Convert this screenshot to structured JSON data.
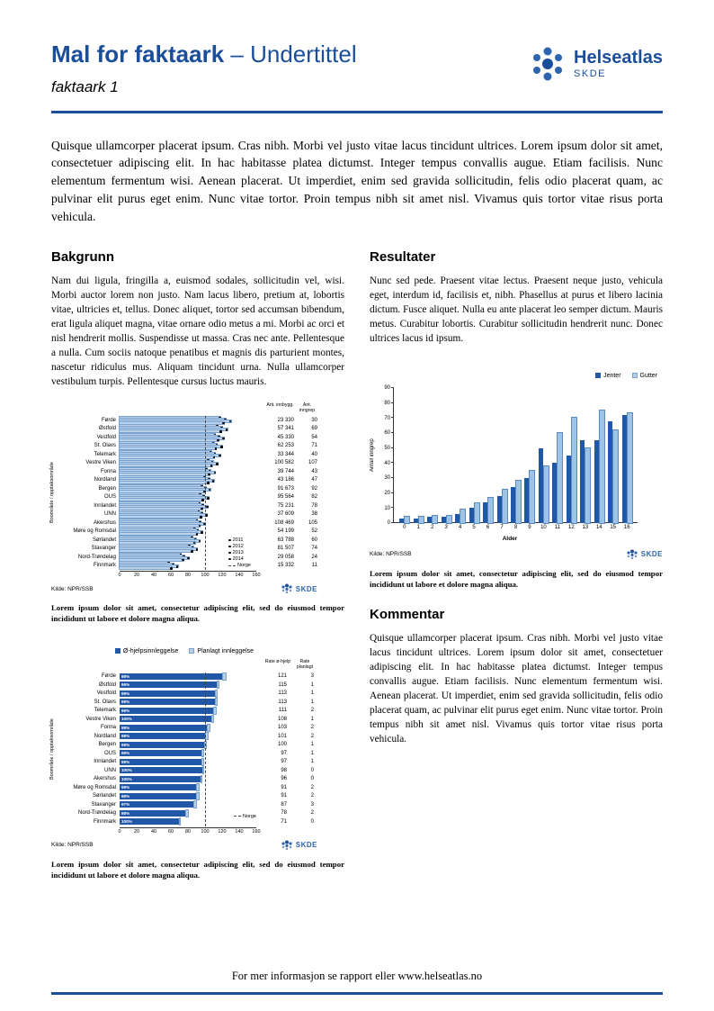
{
  "page": {
    "accent_color": "#1a4e9b",
    "footer_text": "For mer informasjon se rapport eller www.helseatlas.no"
  },
  "header": {
    "title": "Mal for faktaark",
    "separator": " – ",
    "subtitle": "Undertittel",
    "doc_label": "faktaark 1",
    "logo_text": "Helseatlas",
    "logo_sub": "SKDE"
  },
  "intro": "Quisque ullamcorper placerat ipsum. Cras nibh. Morbi vel justo vitae lacus tincidunt ultrices. Lorem ipsum dolor sit amet, consectetuer adipiscing elit. In hac habitasse platea dictumst. Integer tempus convallis augue. Etiam facilisis. Nunc elementum fermentum wisi. Aenean placerat. Ut imperdiet, enim sed gravida sollicitudin, felis odio placerat quam, ac pulvinar elit purus eget enim. Nunc vitae tortor. Proin tempus nibh sit amet nisl. Vivamus quis tortor vitae risus porta vehicula.",
  "sections": {
    "bakgrunn": {
      "title": "Bakgrunn",
      "text": "Nam dui ligula, fringilla a, euismod sodales, sollicitudin vel, wisi. Morbi auctor lorem non justo. Nam lacus libero, pretium at, lobortis vitae, ultricies et, tellus. Donec aliquet, tortor sed accumsan bibendum, erat ligula aliquet magna, vitae ornare odio metus a mi. Morbi ac orci et nisl hendrerit mollis. Suspendisse ut massa. Cras nec ante. Pellentesque a nulla. Cum sociis natoque penatibus et magnis dis parturient montes, nascetur ridiculus mus. Aliquam tincidunt urna. Nulla ullamcorper vestibulum turpis. Pellentesque cursus luctus mauris."
    },
    "resultater": {
      "title": "Resultater",
      "text": "Nunc sed pede. Praesent vitae lectus. Praesent neque justo, vehicula eget, interdum id, facilisis et, nibh. Phasellus at purus et libero lacinia dictum. Fusce aliquet. Nulla eu ante placerat leo semper dictum. Mauris metus. Curabitur lobortis. Curabitur sollicitudin hendrerit nunc. Donec ultrices lacus id ipsum."
    },
    "kommentar": {
      "title": "Kommentar",
      "text": "Quisque ullamcorper placerat ipsum. Cras nibh. Morbi vel justo vitae lacus tincidunt ultrices. Lorem ipsum dolor sit amet, consectetuer adipiscing elit. In hac habitasse platea dictumst. Integer tempus convallis augue. Etiam facilisis. Nunc elementum fermentum wisi. Aenean placerat. Ut imperdiet, enim sed gravida sollicitudin, felis odio placerat quam, ac pulvinar elit purus eget enim. Nunc vitae tortor. Proin tempus nibh sit amet nisl. Vivamus quis tortor vitae risus porta vehicula."
    }
  },
  "captions": {
    "chart1": "Lorem ipsum dolor sit amet, consectetur adipiscing elit, sed do eiusmod tempor incididunt ut labore et dolore magna aliqua.",
    "chart2": "Lorem ipsum dolor sit amet, consectetur adipiscing elit, sed do eiusmod tempor incididunt ut labore et dolore magna aliqua.",
    "chart3": "Lorem ipsum dolor sit amet, consectetur adipiscing elit, sed do eiusmod tempor incididunt ut labore et dolore magna aliqua."
  },
  "chart_data": [
    {
      "type": "bar",
      "orientation": "horizontal",
      "ylabel": "Boområde / opptaksområde",
      "categories": [
        "Førde",
        "Østfold",
        "Vestfold",
        "St. Olavs",
        "Telemark",
        "Vestre Viken",
        "Fonna",
        "Nordland",
        "Bergen",
        "OUS",
        "Innlandet",
        "UNN",
        "Akershus",
        "Møre og Romsdal",
        "Sørlandet",
        "Stavanger",
        "Nord-Trøndelag",
        "Finnmark"
      ],
      "series_names": [
        "2011",
        "2012",
        "2013",
        "2014"
      ],
      "values": [
        [
          118,
          124,
          130,
          122
        ],
        [
          115,
          120,
          126,
          119
        ],
        [
          112,
          117,
          122,
          116
        ],
        [
          110,
          114,
          120,
          113
        ],
        [
          107,
          112,
          118,
          111
        ],
        [
          104,
          109,
          115,
          108
        ],
        [
          102,
          106,
          112,
          105
        ],
        [
          100,
          105,
          110,
          104
        ],
        [
          97,
          101,
          106,
          100
        ],
        [
          95,
          99,
          104,
          98
        ],
        [
          94,
          98,
          103,
          97
        ],
        [
          93,
          97,
          102,
          96
        ],
        [
          91,
          95,
          100,
          94
        ],
        [
          88,
          92,
          97,
          91
        ],
        [
          85,
          89,
          94,
          88
        ],
        [
          82,
          86,
          91,
          85
        ],
        [
          72,
          76,
          81,
          75
        ],
        [
          58,
          63,
          68,
          61
        ]
      ],
      "norge_label": "Norge",
      "norge_value": 100,
      "xlim": [
        0,
        160
      ],
      "xticks": [
        0,
        20,
        40,
        60,
        80,
        100,
        120,
        140,
        160
      ],
      "table": {
        "headers": [
          "Ant. innbygg.",
          "Ant. inngrep"
        ],
        "innbygg": [
          "23 330",
          "57 341",
          "45 330",
          "62 253",
          "33 344",
          "100 582",
          "39 744",
          "43 186",
          "91 673",
          "95 564",
          "75 231",
          "37 609",
          "108 469",
          "54 199",
          "63 788",
          "81 507",
          "29 058",
          "15 332"
        ],
        "inngrep": [
          "30",
          "69",
          "54",
          "71",
          "40",
          "107",
          "43",
          "47",
          "92",
          "82",
          "78",
          "38",
          "105",
          "52",
          "60",
          "74",
          "24",
          "11"
        ]
      },
      "source": "Kilde: NPR/SSB",
      "colors": {
        "bar": "#bcd2ec",
        "marker": "#000000"
      }
    },
    {
      "type": "bar",
      "orientation": "horizontal",
      "stacked": true,
      "ylabel": "Boområde / opptaksområde",
      "categories": [
        "Førde",
        "Østfold",
        "Vestfold",
        "St. Olavs",
        "Telemark",
        "Vestre Viken",
        "Fonna",
        "Nordland",
        "Bergen",
        "OUS",
        "Innlandet",
        "UNN",
        "Akershus",
        "Møre og Romsdal",
        "Sørlandet",
        "Stavanger",
        "Nord-Trøndelag",
        "Finnmark"
      ],
      "pct_labels": [
        "98%",
        "99%",
        "99%",
        "99%",
        "99%",
        "100%",
        "98%",
        "98%",
        "99%",
        "99%",
        "99%",
        "100%",
        "100%",
        "98%",
        "98%",
        "97%",
        "98%",
        "100%"
      ],
      "series": [
        {
          "name": "Ø-hjelpsinnleggelse",
          "values": [
            121,
            115,
            113,
            113,
            111,
            108,
            103,
            101,
            100,
            97,
            97,
            98,
            96,
            91,
            91,
            87,
            78,
            71
          ]
        },
        {
          "name": "Planlagt innleggelse",
          "values": [
            3,
            1,
            1,
            1,
            2,
            1,
            2,
            2,
            1,
            1,
            1,
            0,
            0,
            2,
            2,
            3,
            2,
            0
          ]
        }
      ],
      "table": {
        "headers": [
          "Rate ø-hjelp",
          "Rate planlagt"
        ],
        "rate_ohjelp": [
          "121",
          "115",
          "113",
          "113",
          "111",
          "108",
          "103",
          "101",
          "100",
          "97",
          "97",
          "98",
          "96",
          "91",
          "91",
          "87",
          "78",
          "71"
        ],
        "rate_planlagt": [
          "3",
          "1",
          "1",
          "1",
          "2",
          "1",
          "2",
          "2",
          "1",
          "1",
          "1",
          "0",
          "0",
          "2",
          "2",
          "3",
          "2",
          "0"
        ]
      },
      "norge_label": "Norge",
      "norge_value": 100,
      "xlim": [
        0,
        160
      ],
      "xticks": [
        0,
        20,
        40,
        60,
        80,
        100,
        120,
        140,
        160
      ],
      "source": "Kilde: NPR/SSB",
      "colors": {
        "dark": "#2057a7",
        "light": "#b8cfe8"
      }
    },
    {
      "type": "bar",
      "orientation": "vertical",
      "xlabel": "Alder",
      "ylabel": "Antall inngrep",
      "categories": [
        "0",
        "1",
        "2",
        "3",
        "4",
        "5",
        "6",
        "7",
        "8",
        "9",
        "10",
        "11",
        "12",
        "13",
        "14",
        "15",
        "16"
      ],
      "series": [
        {
          "name": "Jenter",
          "values": [
            3,
            3,
            4,
            4,
            6,
            10,
            14,
            18,
            24,
            30,
            50,
            40,
            45,
            55,
            55,
            68,
            72
          ]
        },
        {
          "name": "Gutter",
          "values": [
            4,
            4,
            5,
            5,
            9,
            13,
            17,
            22,
            28,
            35,
            38,
            60,
            70,
            50,
            75,
            62,
            73
          ]
        }
      ],
      "ylim": [
        0,
        90
      ],
      "yticks": [
        0,
        10,
        20,
        30,
        40,
        50,
        60,
        70,
        80,
        90
      ],
      "legend_position": "top-right",
      "source": "Kilde: NPR/SSB",
      "colors": {
        "Jenter": "#2057a7",
        "Gutter": "#9dc3e6"
      }
    }
  ]
}
